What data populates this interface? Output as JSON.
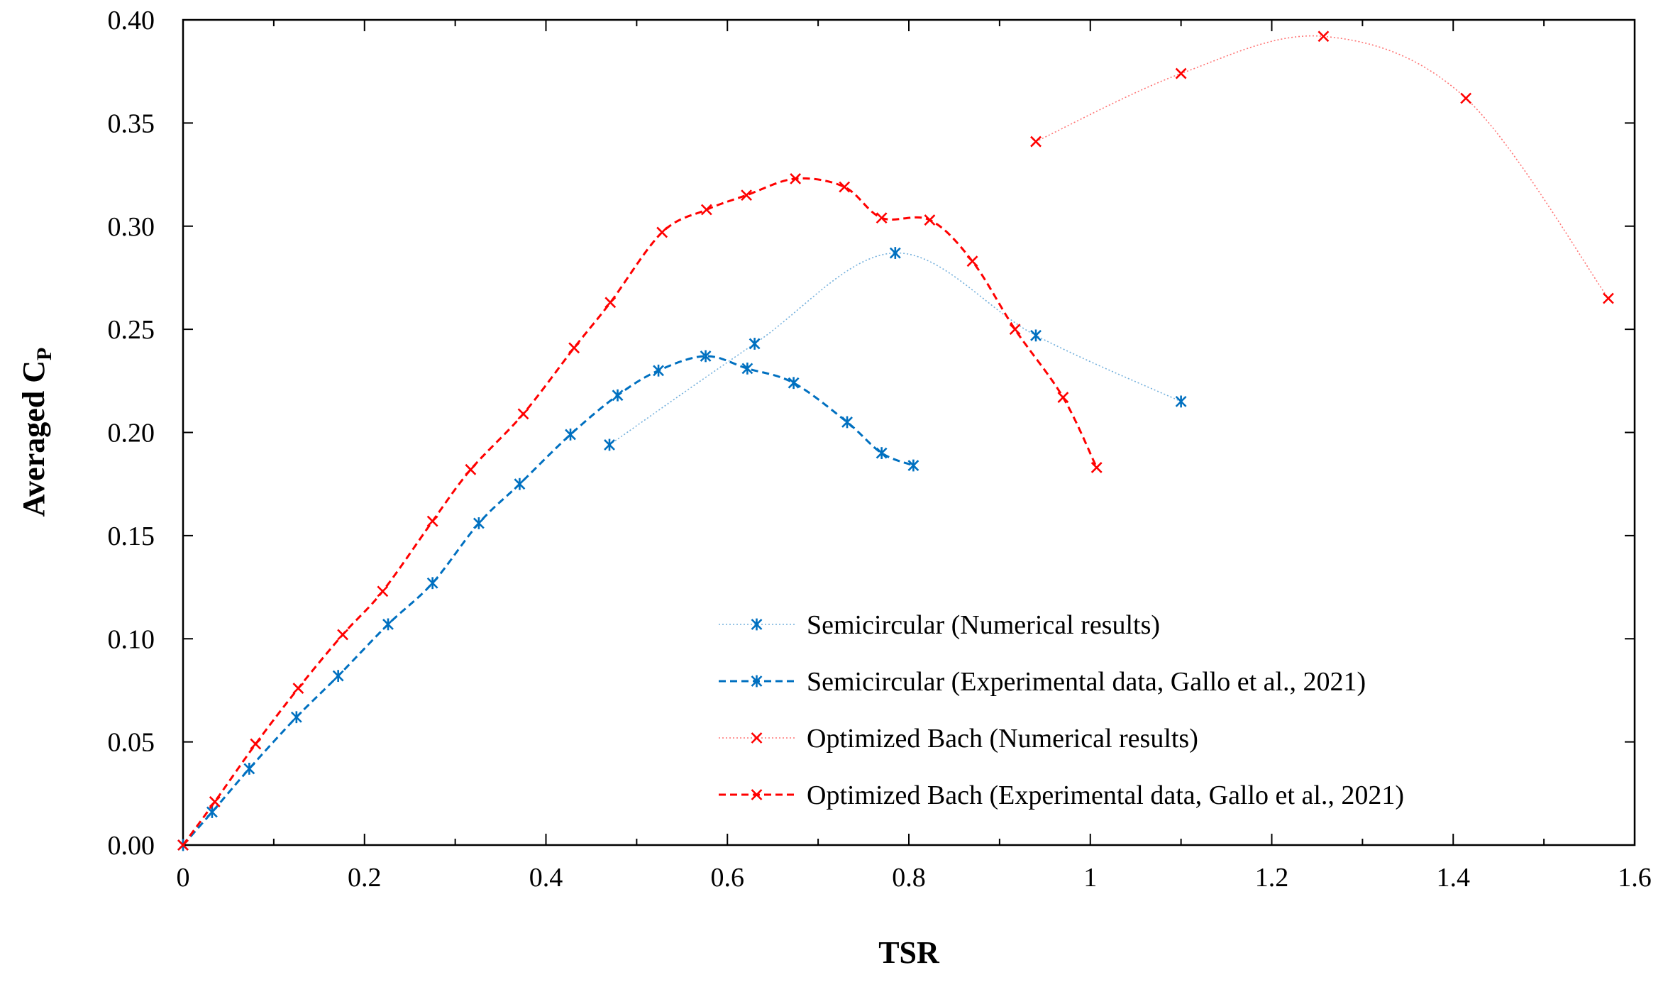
{
  "chart_data": {
    "type": "line",
    "title": "",
    "xlabel": "TSR",
    "ylabel_main": "Averaged C",
    "ylabel_sub": "P",
    "xlim": [
      0,
      1.6
    ],
    "ylim": [
      0,
      0.4
    ],
    "x_ticks": [
      0,
      0.2,
      0.4,
      0.6,
      0.8,
      1.0,
      1.2,
      1.4,
      1.6
    ],
    "x_tick_labels": [
      "0",
      "0.2",
      "0.4",
      "0.6",
      "0.8",
      "1",
      "1.2",
      "1.4",
      "1.6"
    ],
    "y_ticks": [
      0,
      0.05,
      0.1,
      0.15,
      0.2,
      0.25,
      0.3,
      0.35,
      0.4
    ],
    "y_tick_labels": [
      "0.00",
      "0.05",
      "0.10",
      "0.15",
      "0.20",
      "0.25",
      "0.30",
      "0.35",
      "0.40"
    ],
    "legend_position": "lower-center",
    "series": [
      {
        "name": "Semicircular (Numerical results)",
        "color": "#0070C0",
        "line_style": "dotted",
        "marker": "asterisk",
        "x": [
          0.47,
          0.63,
          0.785,
          0.94,
          1.1
        ],
        "y": [
          0.194,
          0.243,
          0.287,
          0.247,
          0.215
        ]
      },
      {
        "name": "Semicircular (Experimental data, Gallo et al., 2021)",
        "color": "#0070C0",
        "line_style": "dashed",
        "marker": "asterisk",
        "x": [
          0,
          0.032,
          0.073,
          0.125,
          0.171,
          0.226,
          0.275,
          0.326,
          0.371,
          0.427,
          0.479,
          0.524,
          0.576,
          0.622,
          0.673,
          0.732,
          0.77,
          0.805
        ],
        "y": [
          0,
          0.016,
          0.037,
          0.062,
          0.082,
          0.107,
          0.127,
          0.156,
          0.175,
          0.199,
          0.218,
          0.23,
          0.237,
          0.231,
          0.224,
          0.205,
          0.19,
          0.184
        ]
      },
      {
        "name": "Optimized Bach (Numerical results)",
        "color": "#FF0000",
        "line_style": "dotted",
        "marker": "x",
        "x": [
          0.94,
          1.1,
          1.257,
          1.414,
          1.571
        ],
        "y": [
          0.341,
          0.374,
          0.392,
          0.362,
          0.265
        ]
      },
      {
        "name": "Optimized Bach (Experimental data, Gallo et al., 2021)",
        "color": "#FF0000",
        "line_style": "dashed",
        "marker": "x",
        "x": [
          0,
          0.035,
          0.08,
          0.127,
          0.176,
          0.22,
          0.275,
          0.317,
          0.375,
          0.431,
          0.471,
          0.528,
          0.577,
          0.621,
          0.675,
          0.729,
          0.77,
          0.823,
          0.87,
          0.917,
          0.97,
          1.007
        ],
        "y": [
          0,
          0.021,
          0.049,
          0.076,
          0.102,
          0.123,
          0.157,
          0.182,
          0.209,
          0.241,
          0.263,
          0.297,
          0.308,
          0.315,
          0.323,
          0.319,
          0.304,
          0.303,
          0.283,
          0.25,
          0.217,
          0.183
        ]
      }
    ]
  }
}
